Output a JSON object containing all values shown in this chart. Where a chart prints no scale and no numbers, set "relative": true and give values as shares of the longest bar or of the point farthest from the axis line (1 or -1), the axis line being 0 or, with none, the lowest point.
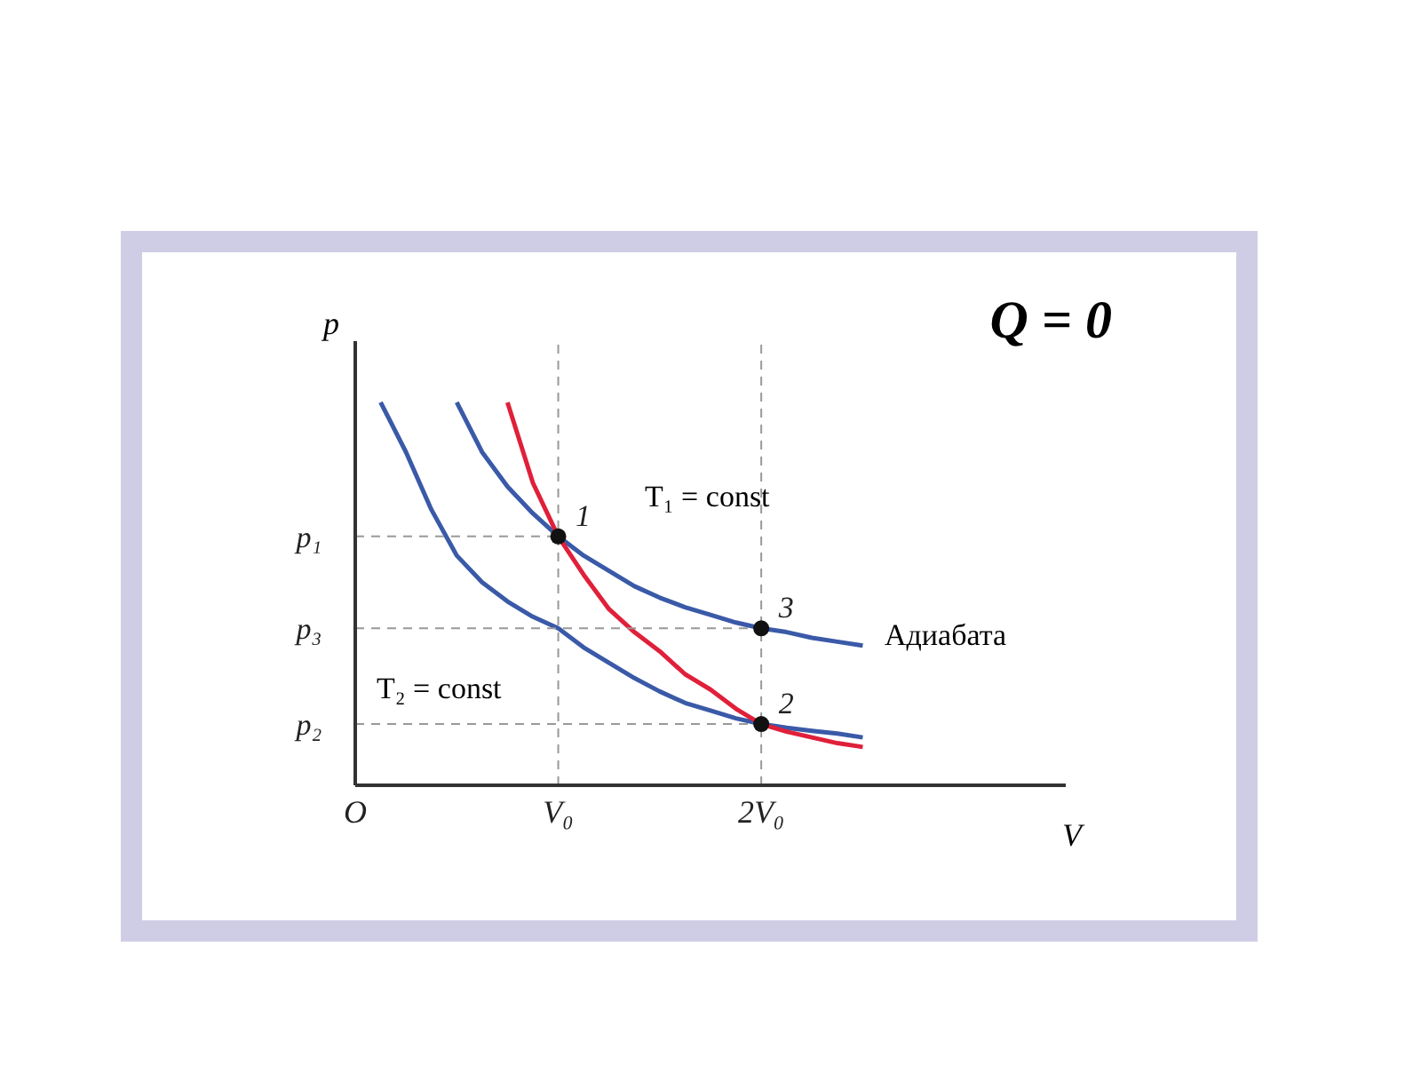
{
  "chart_data": {
    "type": "line",
    "title": "Q = 0",
    "xlabel": "V",
    "ylabel": "p",
    "relative": true,
    "grid": false,
    "marker": "none",
    "line_style": "solid",
    "categories": [
      "O",
      null,
      null,
      null,
      null,
      null,
      null,
      null,
      "V₀",
      null,
      null,
      null,
      null,
      null,
      null,
      null,
      "2V₀",
      null,
      null,
      null,
      null,
      null,
      null,
      null,
      null,
      null,
      null,
      null,
      null
    ],
    "series": [
      {
        "color": "#3a5aa8",
        "values": [
          null,
          1.0,
          0.87,
          0.72,
          0.6,
          0.53,
          0.48,
          0.44,
          0.41,
          0.36,
          0.32,
          0.28,
          0.245,
          0.215,
          0.195,
          0.175,
          0.16,
          0.15,
          0.142,
          0.135,
          0.125,
          null,
          null,
          null,
          null,
          null,
          null,
          null,
          null
        ]
      },
      {
        "color": "#3a5aa8",
        "values": [
          null,
          null,
          null,
          null,
          1.0,
          0.87,
          0.78,
          0.71,
          0.65,
          0.6,
          0.56,
          0.52,
          0.49,
          0.465,
          0.445,
          0.425,
          0.41,
          0.4,
          0.385,
          0.375,
          0.365,
          null,
          null,
          null,
          null,
          null,
          null,
          null,
          null
        ]
      },
      {
        "color": "#e0203a",
        "values": [
          null,
          null,
          null,
          null,
          null,
          null,
          1.0,
          0.79,
          0.65,
          0.55,
          0.46,
          0.4,
          0.35,
          0.29,
          0.25,
          0.2,
          0.16,
          0.14,
          0.125,
          0.11,
          0.1,
          null,
          null,
          null,
          null,
          null,
          null,
          null,
          null
        ]
      },
      {
        "color": "#999999",
        "line_style": "dashed",
        "values": [
          0.65,
          0.65,
          0.65,
          0.65,
          0.65,
          0.65,
          0.65,
          0.65,
          0.65,
          null,
          null,
          null,
          null,
          null,
          null,
          null,
          null,
          null,
          null,
          null,
          null,
          null,
          null,
          null,
          null,
          null,
          null,
          null,
          null
        ]
      },
      {
        "color": "#999999",
        "line_style": "dashed",
        "values": [
          0.41,
          0.41,
          0.41,
          0.41,
          0.41,
          0.41,
          0.41,
          0.41,
          0.41,
          0.41,
          0.41,
          0.41,
          0.41,
          0.41,
          0.41,
          0.41,
          0.41,
          null,
          null,
          null,
          null,
          null,
          null,
          null,
          null,
          null,
          null,
          null,
          null
        ]
      },
      {
        "color": "#999999",
        "line_style": "dashed",
        "values": [
          0.16,
          0.16,
          0.16,
          0.16,
          0.16,
          0.16,
          0.16,
          0.16,
          0.16,
          0.16,
          0.16,
          0.16,
          0.16,
          0.16,
          0.16,
          0.16,
          0.16,
          null,
          null,
          null,
          null,
          null,
          null,
          null,
          null,
          null,
          null,
          null,
          null
        ]
      },
      {
        "type": "scatter",
        "color": "#111111",
        "marker": "circle",
        "x": [
          "V₀",
          "2V₀",
          "2V₀"
        ],
        "values": [
          0.65,
          0.41,
          0.16
        ]
      }
    ],
    "ref_lines": [
      {
        "axis": "x",
        "value": "V₀",
        "color": "#999999",
        "line_style": "dashed"
      },
      {
        "axis": "x",
        "value": "2V₀",
        "color": "#999999",
        "line_style": "dashed"
      }
    ],
    "annotations": [
      {
        "text": "1",
        "x": "V₀",
        "y": 0.65
      },
      {
        "text": "3",
        "x": "2V₀",
        "y": 0.41
      },
      {
        "text": "2",
        "x": "2V₀",
        "y": 0.16
      },
      {
        "text": "p₁",
        "x": "O",
        "y": 0.65
      },
      {
        "text": "p₃",
        "x": "O",
        "y": 0.41
      },
      {
        "text": "p₂",
        "x": "O",
        "y": 0.16
      },
      "T₁ = const",
      "T₂ = const",
      "Адиабата"
    ]
  }
}
